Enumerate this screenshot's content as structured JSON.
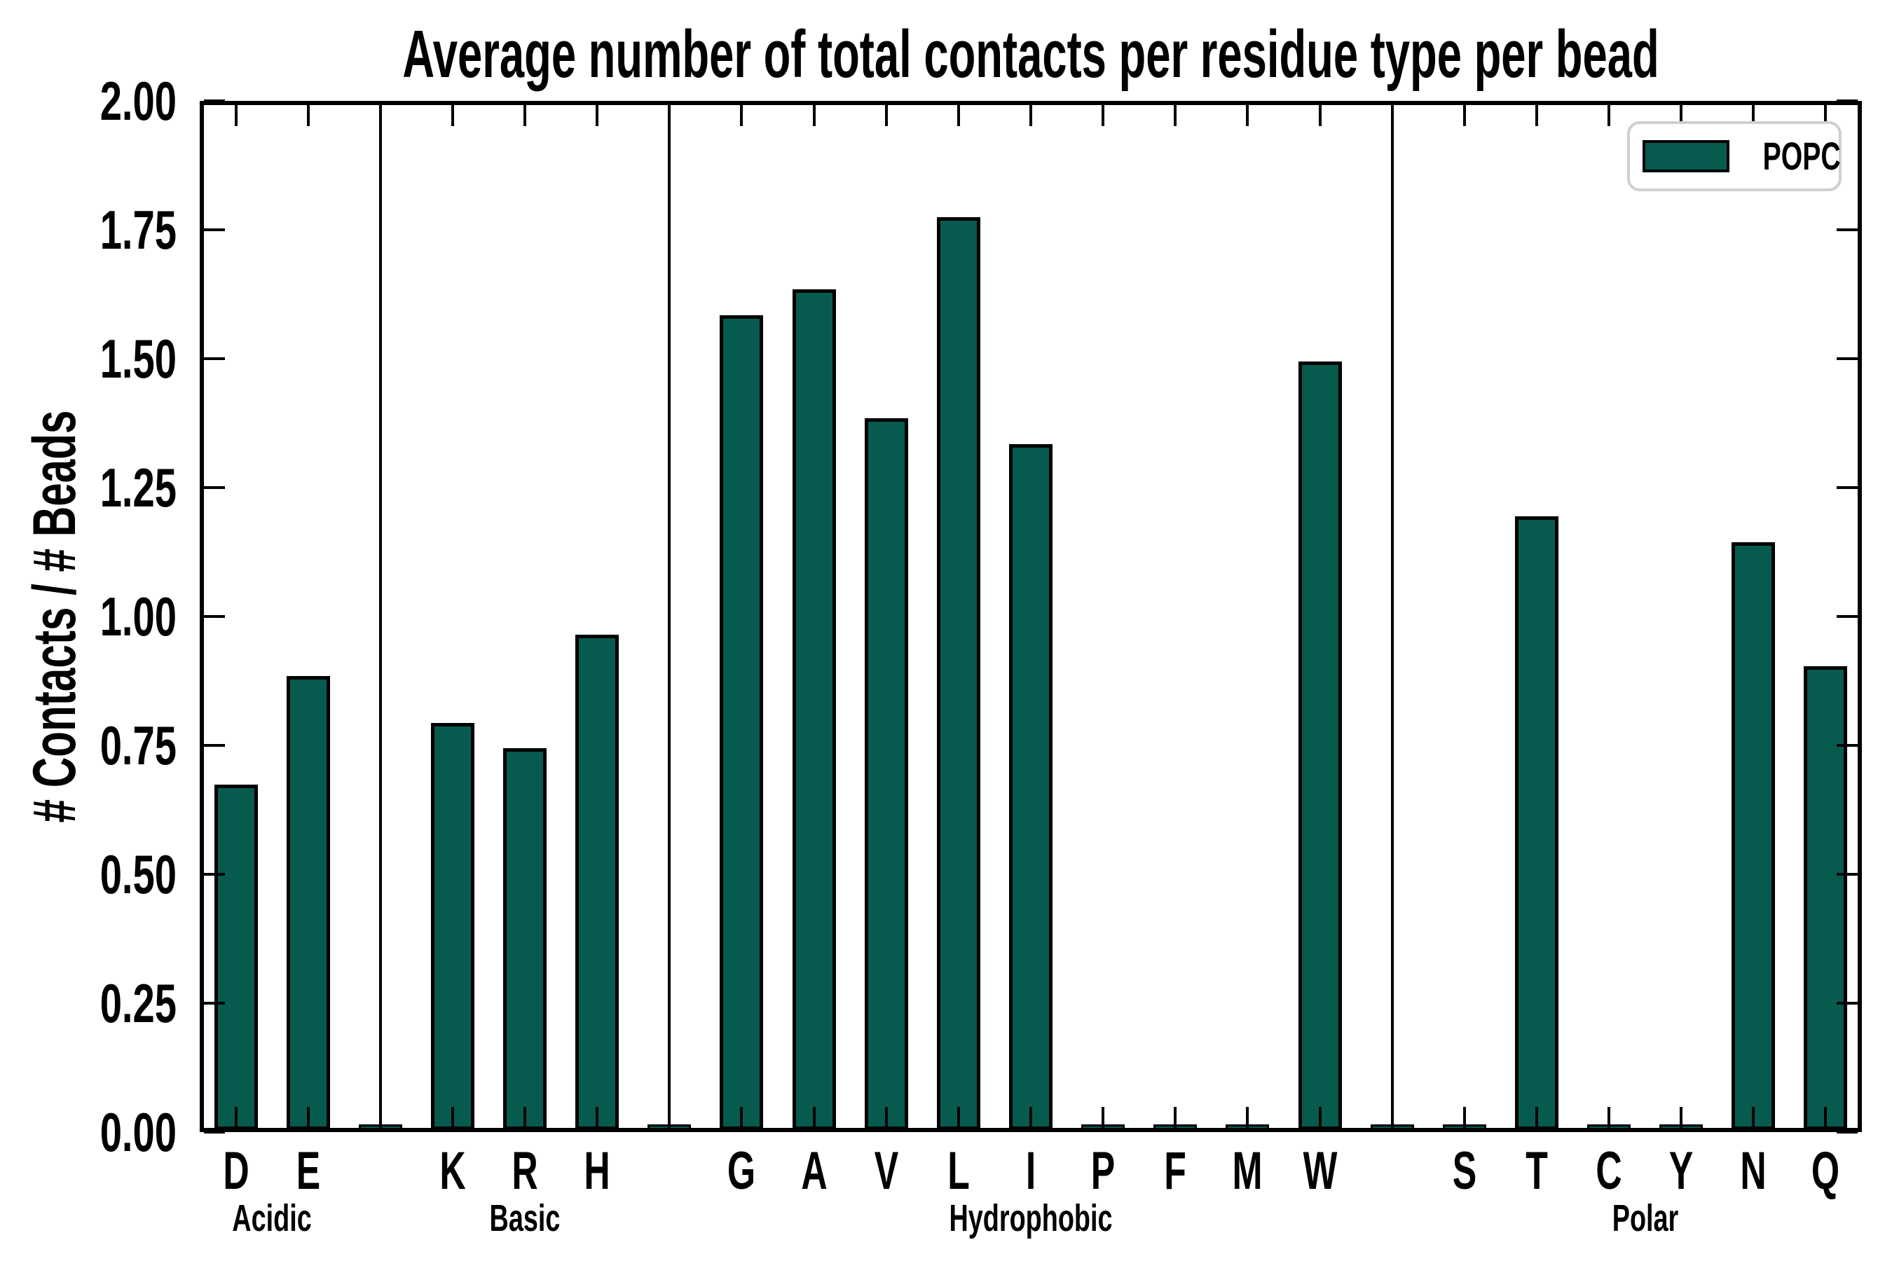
{
  "title": "Average number of total contacts per residue type per bead",
  "ylabel": "# Contacts / # Beads",
  "legend": {
    "label": "POPC"
  },
  "colors": {
    "bar_fill": "#075B4E",
    "bar_edge": "#000000",
    "legend_border": "#cfcfcf",
    "axis": "#000000"
  },
  "y_axis": {
    "min": 0.0,
    "max": 2.0,
    "tick_step": 0.25,
    "tick_labels": [
      "2.00",
      "1.75",
      "1.50",
      "1.25",
      "1.00",
      "0.75",
      "0.50",
      "0.25",
      "0.00"
    ]
  },
  "chart_data": {
    "type": "bar",
    "title": "Average number of total contacts per residue type per bead",
    "xlabel": "",
    "ylabel": "# Contacts / # Beads",
    "ylim": [
      0.0,
      2.0
    ],
    "grid": false,
    "legend_position": "upper right",
    "legend_entries": [
      "POPC"
    ],
    "series_name": "POPC",
    "groups": [
      {
        "label": "Acidic",
        "categories": [
          "D",
          "E"
        ],
        "values": [
          0.67,
          0.88
        ]
      },
      {
        "label": "Basic",
        "categories": [
          "K",
          "R",
          "H"
        ],
        "values": [
          0.79,
          0.74,
          0.96
        ]
      },
      {
        "label": "Hydrophobic",
        "categories": [
          "G",
          "A",
          "V",
          "L",
          "I",
          "P",
          "F",
          "M",
          "W"
        ],
        "values": [
          1.58,
          1.63,
          1.38,
          1.77,
          1.33,
          0.01,
          0.01,
          0.01,
          1.49
        ]
      },
      {
        "label": "Polar",
        "categories": [
          "S",
          "T",
          "C",
          "Y",
          "N",
          "Q"
        ],
        "values": [
          0.01,
          1.19,
          0.01,
          0.01,
          1.14,
          0.9
        ]
      }
    ],
    "group_separator_value": 0.01
  }
}
